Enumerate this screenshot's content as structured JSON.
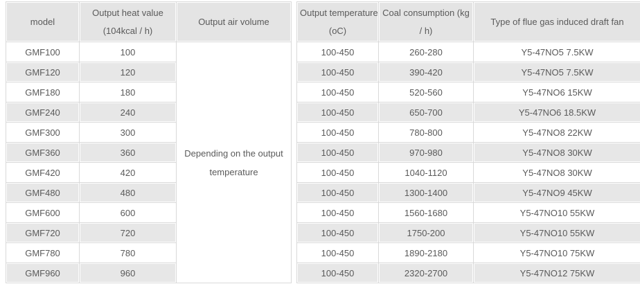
{
  "colors": {
    "header_bg": "#e4e4e4",
    "stripe_bg": "#e7e7e7",
    "row_bg": "#ffffff",
    "cell_border": "#d9d9d9",
    "outer_dark_border": "#1c1c1c",
    "text": "#5a5a5a"
  },
  "table": {
    "headers": {
      "model": "model",
      "heat_value_line1": "Output heat value",
      "heat_value_line2": "(104kcal / h)",
      "air_volume": "Output air volume",
      "temperature_line1": "Output temperature",
      "temperature_line2": "(oC)",
      "coal_line1": "Coal consumption (kg",
      "coal_line2": "/ h)",
      "fan": "Type of flue gas induced draft fan"
    },
    "air_volume_note": {
      "line1": "Depending on the output",
      "line2": "temperature"
    },
    "rows": [
      {
        "model": "GMF100",
        "heat": "100",
        "temp": "100-450",
        "coal": "260-280",
        "fan": "Y5-47NO5 7.5KW"
      },
      {
        "model": "GMF120",
        "heat": "120",
        "temp": "100-450",
        "coal": "390-420",
        "fan": "Y5-47NO5 7.5KW"
      },
      {
        "model": "GMF180",
        "heat": "180",
        "temp": "100-450",
        "coal": "520-560",
        "fan": "Y5-47NO6 15KW"
      },
      {
        "model": "GMF240",
        "heat": "240",
        "temp": "100-450",
        "coal": "650-700",
        "fan": "Y5-47NO6 18.5KW"
      },
      {
        "model": "GMF300",
        "heat": "300",
        "temp": "100-450",
        "coal": "780-800",
        "fan": "Y5-47NO8 22KW"
      },
      {
        "model": "GMF360",
        "heat": "360",
        "temp": "100-450",
        "coal": "970-980",
        "fan": "Y5-47NO8 30KW"
      },
      {
        "model": "GMF420",
        "heat": "420",
        "temp": "100-450",
        "coal": "1040-1120",
        "fan": "Y5-47NO8 30KW"
      },
      {
        "model": "GMF480",
        "heat": "480",
        "temp": "100-450",
        "coal": "1300-1400",
        "fan": "Y5-47NO9 45KW"
      },
      {
        "model": "GMF600",
        "heat": "600",
        "temp": "100-450",
        "coal": "1560-1680",
        "fan": "Y5-47NO10 55KW"
      },
      {
        "model": "GMF720",
        "heat": "720",
        "temp": "100-450",
        "coal": "1750-200",
        "fan": "Y5-47NO10 55KW"
      },
      {
        "model": "GMF780",
        "heat": "780",
        "temp": "100-450",
        "coal": "1890-2180",
        "fan": "Y5-47NO10 75KW"
      },
      {
        "model": "GMF960",
        "heat": "960",
        "temp": "100-450",
        "coal": "2320-2700",
        "fan": "Y5-47NO12 75KW"
      }
    ]
  }
}
